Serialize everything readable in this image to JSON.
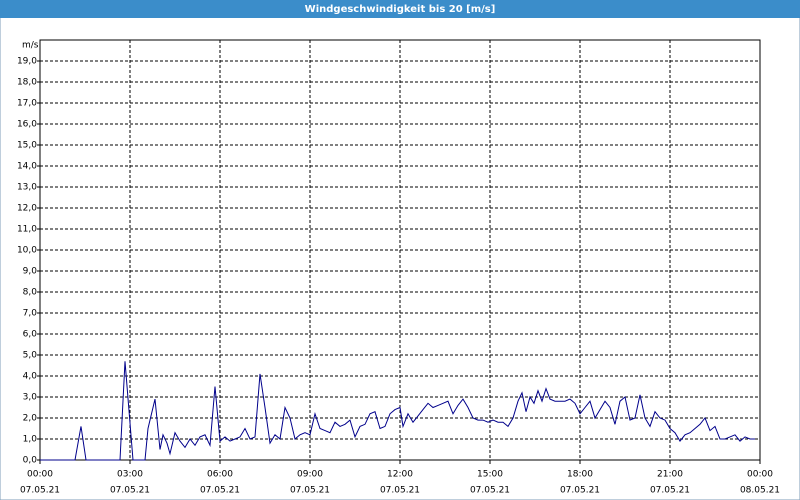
{
  "chart_data": {
    "type": "line",
    "title": "Windgeschwindigkeit bis 20 [m/s]",
    "y_label": "m/s",
    "xlim": [
      0,
      1440
    ],
    "ylim": [
      0,
      20
    ],
    "grid": true,
    "xticks": [
      {
        "value": 0,
        "label": "00:00"
      },
      {
        "value": 180,
        "label": "03:00"
      },
      {
        "value": 360,
        "label": "06:00"
      },
      {
        "value": 540,
        "label": "09:00"
      },
      {
        "value": 720,
        "label": "12:00"
      },
      {
        "value": 900,
        "label": "15:00"
      },
      {
        "value": 1080,
        "label": "18:00"
      },
      {
        "value": 1260,
        "label": "21:00"
      },
      {
        "value": 1440,
        "label": "00:00"
      }
    ],
    "xtick_dates": [
      "07.05.21",
      "07.05.21",
      "07.05.21",
      "07.05.21",
      "07.05.21",
      "07.05.21",
      "07.05.21",
      "07.05.21",
      "08.05.21"
    ],
    "yticks": [
      {
        "value": 0,
        "label": "0,0"
      },
      {
        "value": 1,
        "label": "1,0"
      },
      {
        "value": 2,
        "label": "2,0"
      },
      {
        "value": 3,
        "label": "3,0"
      },
      {
        "value": 4,
        "label": "4,0"
      },
      {
        "value": 5,
        "label": "5,0"
      },
      {
        "value": 6,
        "label": "6,0"
      },
      {
        "value": 7,
        "label": "7,0"
      },
      {
        "value": 8,
        "label": "8,0"
      },
      {
        "value": 9,
        "label": "9,0"
      },
      {
        "value": 10,
        "label": "10,0"
      },
      {
        "value": 11,
        "label": "11,0"
      },
      {
        "value": 12,
        "label": "12,0"
      },
      {
        "value": 13,
        "label": "13,0"
      },
      {
        "value": 14,
        "label": "14,0"
      },
      {
        "value": 15,
        "label": "15,0"
      },
      {
        "value": 16,
        "label": "16,0"
      },
      {
        "value": 17,
        "label": "17,0"
      },
      {
        "value": 18,
        "label": "18,0"
      },
      {
        "value": 19,
        "label": "19,0"
      }
    ],
    "series": [
      {
        "name": "Windgeschwindigkeit",
        "color": "#00008b",
        "x": [
          0,
          70,
          82,
          92,
          160,
          170,
          186,
          210,
          216,
          230,
          240,
          246,
          254,
          260,
          270,
          280,
          290,
          300,
          310,
          320,
          330,
          340,
          350,
          360,
          370,
          380,
          390,
          400,
          410,
          420,
          430,
          440,
          450,
          460,
          470,
          480,
          490,
          500,
          510,
          520,
          530,
          540,
          550,
          560,
          570,
          580,
          590,
          600,
          610,
          620,
          630,
          640,
          650,
          660,
          670,
          680,
          690,
          700,
          710,
          720,
          726,
          736,
          746,
          756,
          766,
          776,
          786,
          796,
          806,
          816,
          826,
          836,
          846,
          856,
          866,
          876,
          886,
          896,
          906,
          916,
          926,
          936,
          946,
          956,
          964,
          972,
          980,
          988,
          996,
          1004,
          1012,
          1020,
          1030,
          1040,
          1050,
          1060,
          1070,
          1080,
          1090,
          1100,
          1110,
          1120,
          1130,
          1140,
          1150,
          1160,
          1170,
          1180,
          1190,
          1200,
          1210,
          1220,
          1230,
          1240,
          1250,
          1260,
          1270,
          1280,
          1290,
          1300,
          1310,
          1320,
          1330,
          1340,
          1350,
          1360,
          1370,
          1380,
          1390,
          1400,
          1410,
          1420,
          1430
        ],
        "values": [
          0,
          0,
          1.6,
          0,
          0,
          4.7,
          0,
          0,
          1.5,
          2.9,
          0.5,
          1.2,
          0.8,
          0.3,
          1.3,
          0.9,
          0.6,
          1.0,
          0.7,
          1.1,
          1.2,
          0.7,
          3.5,
          0.9,
          1.1,
          0.9,
          1.0,
          1.1,
          1.5,
          1.0,
          1.1,
          4.1,
          2.5,
          0.8,
          1.2,
          1.0,
          2.5,
          2.0,
          1.0,
          1.2,
          1.3,
          1.2,
          2.2,
          1.5,
          1.4,
          1.3,
          1.8,
          1.6,
          1.7,
          1.9,
          1.1,
          1.6,
          1.7,
          2.2,
          2.3,
          1.5,
          1.6,
          2.2,
          2.4,
          2.5,
          1.6,
          2.2,
          1.8,
          2.1,
          2.4,
          2.7,
          2.5,
          2.6,
          2.7,
          2.8,
          2.2,
          2.6,
          2.9,
          2.5,
          2.0,
          1.9,
          1.9,
          1.8,
          1.9,
          1.8,
          1.8,
          1.6,
          2.0,
          2.8,
          3.2,
          2.3,
          3.0,
          2.7,
          3.3,
          2.8,
          3.4,
          2.9,
          2.8,
          2.8,
          2.8,
          2.9,
          2.7,
          2.2,
          2.5,
          2.8,
          2.0,
          2.4,
          2.8,
          2.5,
          1.7,
          2.8,
          3.0,
          1.9,
          2.0,
          3.1,
          2.0,
          1.6,
          2.3,
          2.0,
          1.9,
          1.5,
          1.3,
          0.9,
          1.2,
          1.3,
          1.5,
          1.7,
          2.0,
          1.4,
          1.6,
          1.0,
          1.0,
          1.1,
          1.2,
          0.9,
          1.1,
          1.0,
          1.0
        ]
      }
    ]
  }
}
